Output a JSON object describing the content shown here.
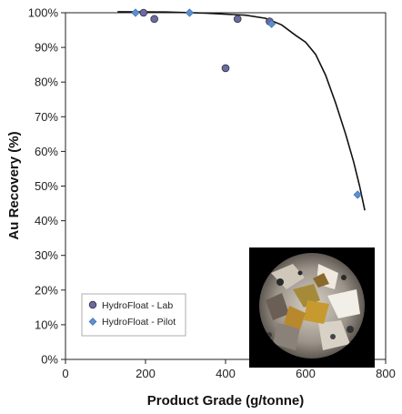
{
  "chart_data": {
    "type": "scatter",
    "xlabel": "Product Grade (g/tonne)",
    "ylabel": "Au Recovery (%)",
    "xlim": [
      0,
      800
    ],
    "ylim": [
      0,
      100
    ],
    "xticks": [
      0,
      200,
      400,
      600,
      800
    ],
    "yticks": [
      0,
      10,
      20,
      30,
      40,
      50,
      60,
      70,
      80,
      90,
      100
    ],
    "xtick_labels": [
      "0",
      "200",
      "400",
      "600",
      "800"
    ],
    "ytick_labels": [
      "0%",
      "10%",
      "20%",
      "30%",
      "40%",
      "50%",
      "60%",
      "70%",
      "80%",
      "90%",
      "100%"
    ],
    "grid": false,
    "legend_position": "bottom-left",
    "series": [
      {
        "name": "HydroFloat - Lab",
        "marker": "circle",
        "color": "#6a6aa6",
        "points": [
          {
            "x": 195,
            "y": 100
          },
          {
            "x": 222,
            "y": 98.2
          },
          {
            "x": 400,
            "y": 84
          },
          {
            "x": 430,
            "y": 98.2
          },
          {
            "x": 510,
            "y": 97.5
          }
        ]
      },
      {
        "name": "HydroFloat - Pilot",
        "marker": "diamond",
        "color": "#5b8fd0",
        "points": [
          {
            "x": 175,
            "y": 100
          },
          {
            "x": 310,
            "y": 100
          },
          {
            "x": 515,
            "y": 96.8
          },
          {
            "x": 730,
            "y": 47.5
          }
        ]
      }
    ],
    "trend_line": {
      "color": "#111111",
      "points": [
        {
          "x": 130,
          "y": 100.3
        },
        {
          "x": 250,
          "y": 100.2
        },
        {
          "x": 350,
          "y": 99.9
        },
        {
          "x": 450,
          "y": 99.3
        },
        {
          "x": 500,
          "y": 98.4
        },
        {
          "x": 540,
          "y": 96.5
        },
        {
          "x": 575,
          "y": 93.5
        },
        {
          "x": 600,
          "y": 91.5
        },
        {
          "x": 625,
          "y": 88.0
        },
        {
          "x": 650,
          "y": 82.0
        },
        {
          "x": 675,
          "y": 74.0
        },
        {
          "x": 700,
          "y": 65.0
        },
        {
          "x": 720,
          "y": 57.0
        },
        {
          "x": 735,
          "y": 50.0
        },
        {
          "x": 748,
          "y": 43.0
        }
      ]
    },
    "inset_image": "microscope-photo-icon"
  }
}
